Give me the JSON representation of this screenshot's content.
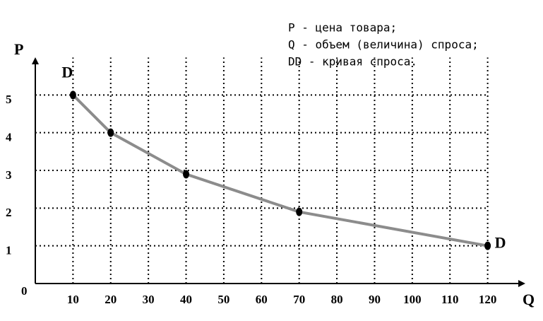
{
  "chart_data": {
    "type": "line",
    "legend_lines": [
      "P - цена товара;",
      "Q - объем (величина) спроса;",
      "DD - кривая спроса."
    ],
    "x_label": "Q",
    "y_label": "P",
    "origin_label": "0",
    "curve_labels": [
      "D",
      "D"
    ],
    "x": [
      10,
      20,
      40,
      70,
      120
    ],
    "series": [
      {
        "name": "DD",
        "color": "#8c8c8c",
        "values": [
          5,
          4,
          2.9,
          1.9,
          1
        ]
      }
    ],
    "xlim": [
      0,
      130
    ],
    "ylim": [
      0,
      6
    ],
    "xticks": [
      10,
      20,
      30,
      40,
      50,
      60,
      70,
      80,
      90,
      100,
      110,
      120
    ],
    "yticks": [
      1,
      2,
      3,
      4,
      5
    ],
    "grid": true
  }
}
